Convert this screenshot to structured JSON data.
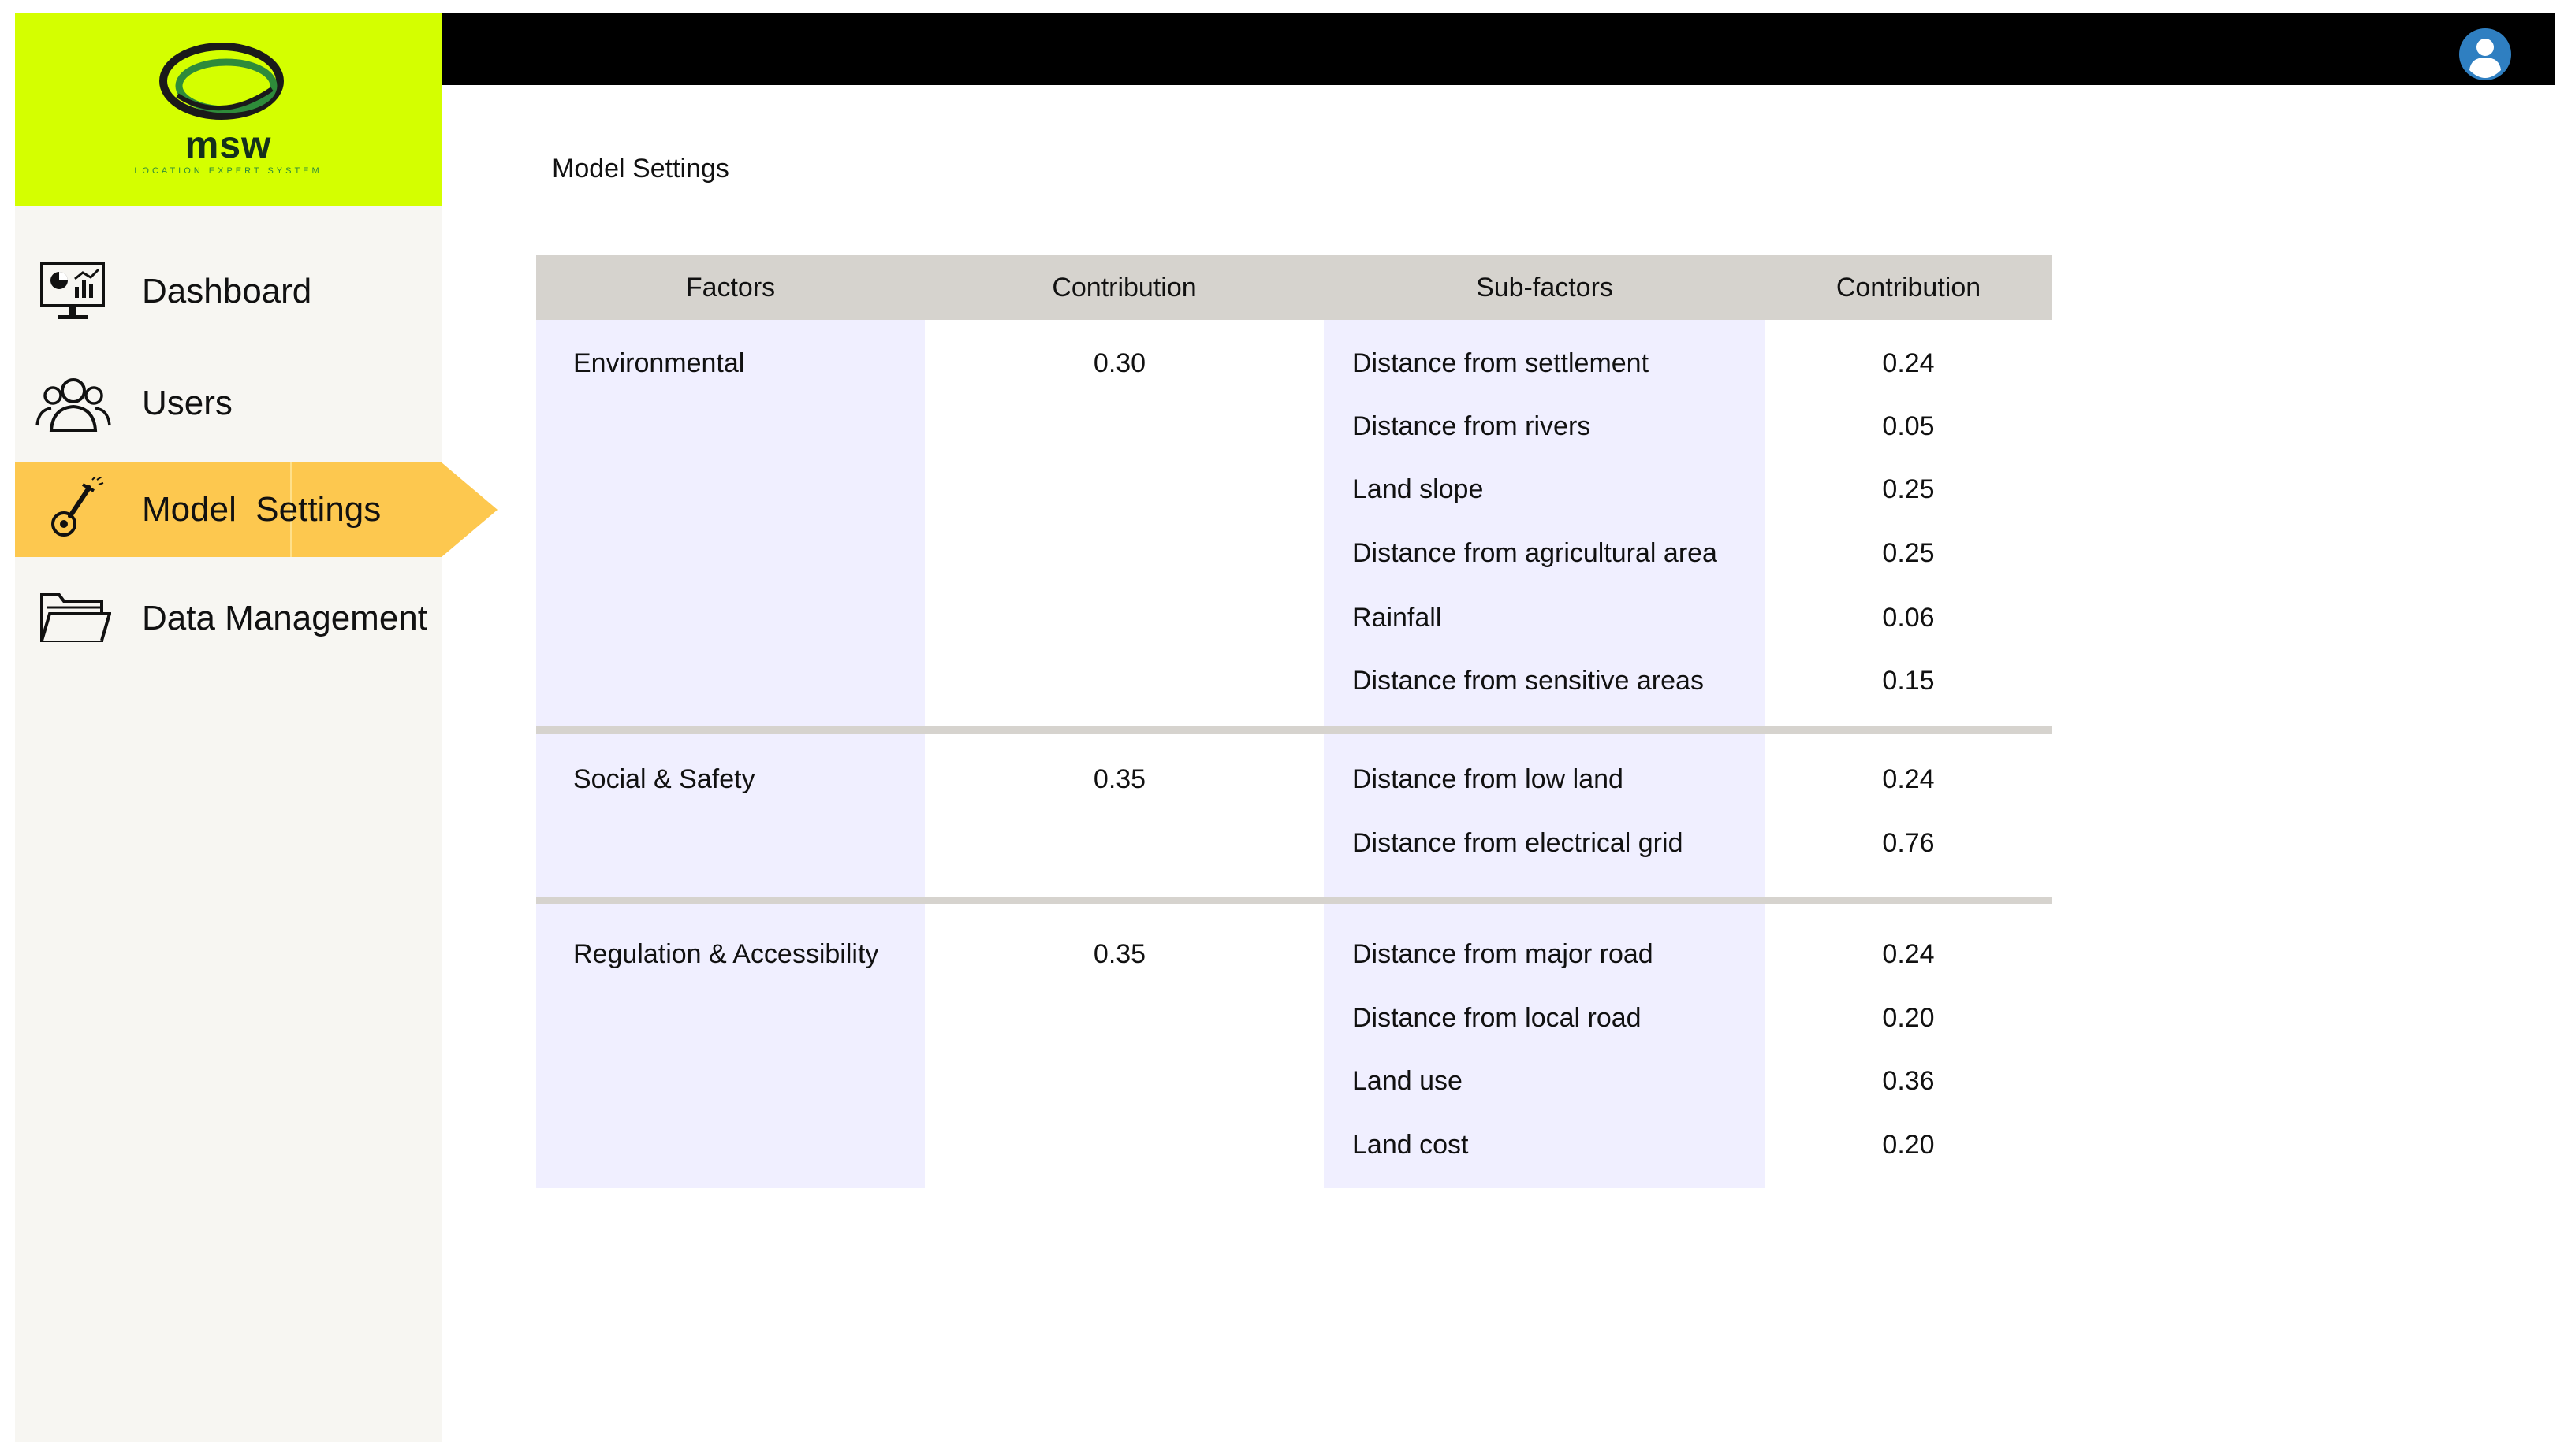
{
  "app": {
    "logo_text": "msw",
    "logo_subtitle": "LOCATION EXPERT SYSTEM"
  },
  "colors": {
    "logo_bg": "#d4ff00",
    "active_nav": "#fdc84f",
    "topbar": "#000000",
    "header_row": "#d6d3ce",
    "column_highlight": "#f0efff",
    "avatar": "#2f7fc1"
  },
  "sidebar": {
    "items": [
      {
        "label": "Dashboard",
        "icon": "dashboard-monitor-icon",
        "active": false
      },
      {
        "label": "Users",
        "icon": "users-group-icon",
        "active": false
      },
      {
        "label": "Model  Settings",
        "icon": "model-settings-wrench-icon",
        "active": true
      },
      {
        "label": "Data Management",
        "icon": "folder-icon",
        "active": false
      }
    ]
  },
  "header": {
    "user_icon": "user-avatar-icon"
  },
  "page": {
    "title": "Model Settings"
  },
  "table": {
    "columns": [
      "Factors",
      "Contribution",
      "Sub-factors",
      "Contribution"
    ],
    "groups": [
      {
        "factor": "Environmental",
        "contribution": "0.30",
        "subfactors": [
          {
            "name": "Distance from settlement",
            "contribution": "0.24"
          },
          {
            "name": "Distance from rivers",
            "contribution": "0.05"
          },
          {
            "name": "Land slope",
            "contribution": "0.25"
          },
          {
            "name": "Distance from agricultural area",
            "contribution": "0.25"
          },
          {
            "name": "Rainfall",
            "contribution": "0.06"
          },
          {
            "name": "Distance from sensitive areas",
            "contribution": "0.15"
          }
        ]
      },
      {
        "factor": "Social & Safety",
        "contribution": "0.35",
        "subfactors": [
          {
            "name": "Distance from low land",
            "contribution": "0.24"
          },
          {
            "name": "Distance from electrical grid",
            "contribution": "0.76"
          }
        ]
      },
      {
        "factor": "Regulation & Accessibility",
        "contribution": "0.35",
        "subfactors": [
          {
            "name": "Distance from major road",
            "contribution": "0.24"
          },
          {
            "name": "Distance from local road",
            "contribution": "0.20"
          },
          {
            "name": "Land use",
            "contribution": "0.36"
          },
          {
            "name": "Land cost",
            "contribution": "0.20"
          }
        ]
      }
    ]
  }
}
